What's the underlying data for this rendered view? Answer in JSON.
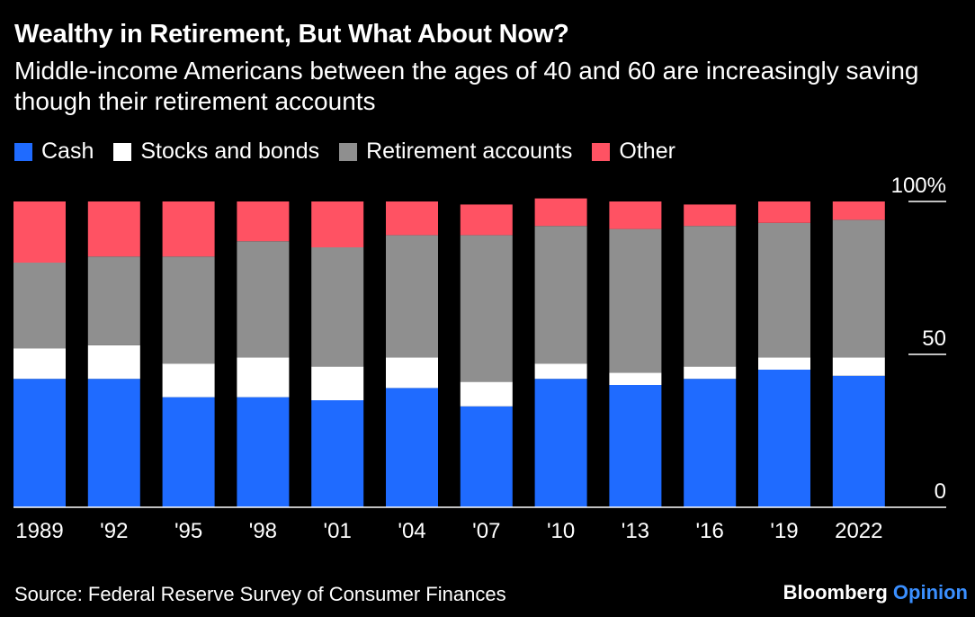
{
  "header": {
    "title": "Wealthy in Retirement, But What About Now?",
    "subtitle": "Middle-income Americans between the ages of 40 and 60 are increasingly saving though their retirement accounts"
  },
  "footer": {
    "source": "Source: Federal Reserve Survey of Consumer Finances",
    "logo_brand": "Bloomberg",
    "logo_section": "Opinion"
  },
  "colors": {
    "background": "#000000",
    "cash": "#1f6bff",
    "stocks_bonds": "#ffffff",
    "retirement": "#8f8f8f",
    "other": "#ff5263",
    "axis": "#ffffff",
    "logo_accent": "#3a8fff"
  },
  "chart_data": {
    "type": "bar",
    "stacked": true,
    "categories": [
      "1989",
      "'92",
      "'95",
      "'98",
      "'01",
      "'04",
      "'07",
      "'10",
      "'13",
      "'16",
      "'19",
      "2022"
    ],
    "series": [
      {
        "name": "Cash",
        "color": "#1f6bff",
        "values": [
          42,
          42,
          36,
          36,
          35,
          39,
          33,
          42,
          40,
          42,
          45,
          43
        ]
      },
      {
        "name": "Stocks and bonds",
        "color": "#ffffff",
        "values": [
          10,
          11,
          11,
          13,
          11,
          10,
          8,
          5,
          4,
          4,
          4,
          6
        ]
      },
      {
        "name": "Retirement accounts",
        "color": "#8f8f8f",
        "values": [
          28,
          29,
          35,
          38,
          39,
          40,
          48,
          45,
          47,
          46,
          44,
          45
        ]
      },
      {
        "name": "Other",
        "color": "#ff5263",
        "values": [
          20,
          18,
          18,
          13,
          15,
          11,
          10,
          9,
          9,
          7,
          7,
          6
        ]
      }
    ],
    "y_ticks": [
      {
        "value": 100,
        "label": "100%"
      },
      {
        "value": 50,
        "label": "50"
      },
      {
        "value": 0,
        "label": "0"
      }
    ],
    "ylim": [
      0,
      100
    ],
    "legend_position": "top-left",
    "grid": false
  }
}
